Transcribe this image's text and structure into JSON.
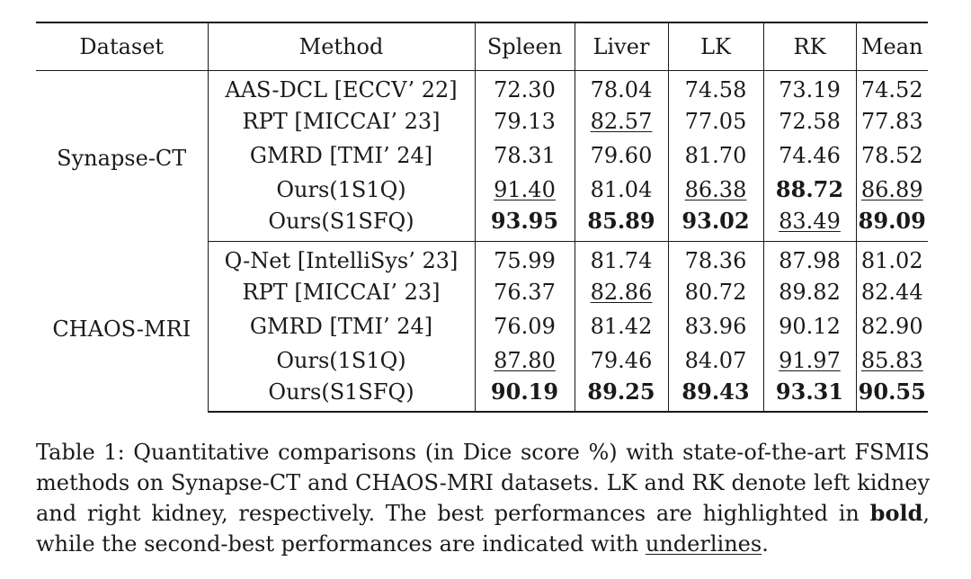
{
  "table": {
    "headers": [
      "Dataset",
      "Method",
      "Spleen",
      "Liver",
      "LK",
      "RK",
      "Mean"
    ],
    "groups": [
      {
        "dataset": "Synapse-CT",
        "rows": [
          {
            "method": "AAS-DCL [ECCV’ 22]",
            "values": [
              "72.30",
              "78.04",
              "74.58",
              "73.19",
              "74.52"
            ],
            "styles": [
              "",
              "",
              "",
              "",
              ""
            ]
          },
          {
            "method": "RPT [MICCAI’ 23]",
            "values": [
              "79.13",
              "82.57",
              "77.05",
              "72.58",
              "77.83"
            ],
            "styles": [
              "",
              "u",
              "",
              "",
              ""
            ]
          },
          {
            "method": "GMRD [TMI’ 24]",
            "values": [
              "78.31",
              "79.60",
              "81.70",
              "74.46",
              "78.52"
            ],
            "styles": [
              "",
              "",
              "",
              "",
              ""
            ]
          },
          {
            "method": "Ours(1S1Q)",
            "values": [
              "91.40",
              "81.04",
              "86.38",
              "88.72",
              "86.89"
            ],
            "styles": [
              "u",
              "",
              "u",
              "b",
              "u"
            ]
          },
          {
            "method": "Ours(S1SFQ)",
            "values": [
              "93.95",
              "85.89",
              "93.02",
              "83.49",
              "89.09"
            ],
            "styles": [
              "b",
              "b",
              "b",
              "u",
              "b"
            ]
          }
        ]
      },
      {
        "dataset": "CHAOS-MRI",
        "rows": [
          {
            "method": "Q-Net [IntelliSys’ 23]",
            "values": [
              "75.99",
              "81.74",
              "78.36",
              "87.98",
              "81.02"
            ],
            "styles": [
              "",
              "",
              "",
              "",
              ""
            ]
          },
          {
            "method": "RPT [MICCAI’ 23]",
            "values": [
              "76.37",
              "82.86",
              "80.72",
              "89.82",
              "82.44"
            ],
            "styles": [
              "",
              "u",
              "",
              "",
              ""
            ]
          },
          {
            "method": "GMRD [TMI’ 24]",
            "values": [
              "76.09",
              "81.42",
              "83.96",
              "90.12",
              "82.90"
            ],
            "styles": [
              "",
              "",
              "",
              "",
              ""
            ]
          },
          {
            "method": "Ours(1S1Q)",
            "values": [
              "87.80",
              "79.46",
              "84.07",
              "91.97",
              "85.83"
            ],
            "styles": [
              "u",
              "",
              "",
              "u",
              "u"
            ]
          },
          {
            "method": "Ours(S1SFQ)",
            "values": [
              "90.19",
              "89.25",
              "89.43",
              "93.31",
              "90.55"
            ],
            "styles": [
              "b",
              "b",
              "b",
              "b",
              "b"
            ]
          }
        ]
      }
    ]
  },
  "caption": {
    "label": "Table 1:",
    "text_1": " Quantitative comparisons (in Dice score %) with state-of-the-art FSMIS methods on Synapse-CT and CHAOS-MRI datasets. LK and RK denote left kidney and right kidney, respectively. The best performances are highlighted in ",
    "bold_word": "bold",
    "text_2": ", while the second-best performances are indicated with ",
    "underline_word": "underlines",
    "text_3": "."
  }
}
